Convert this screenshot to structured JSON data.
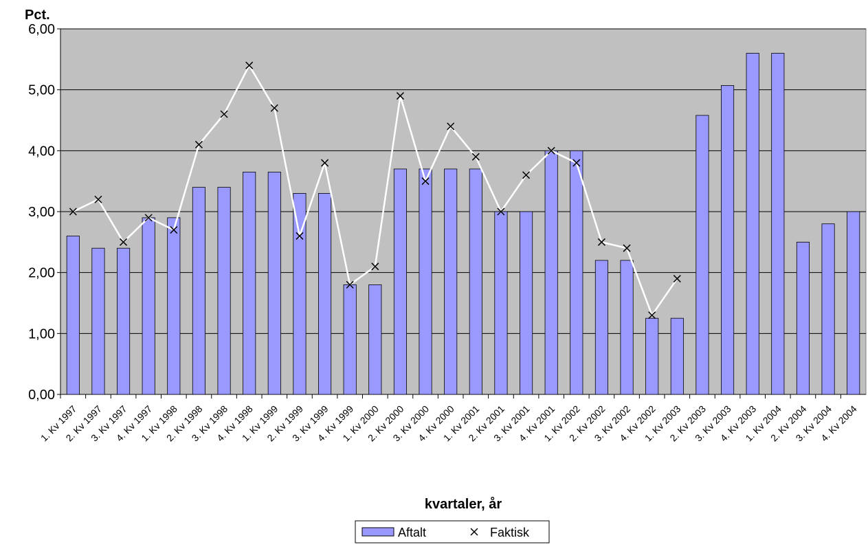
{
  "chart_data": {
    "type": "bar-line",
    "title": "Pct.",
    "x_label": "kvartaler, år",
    "categories": [
      "1. Kv 1997",
      "2. Kv 1997",
      "3. Kv 1997",
      "4. Kv 1997",
      "1. Kv 1998",
      "2. Kv 1998",
      "3. Kv 1998",
      "4. Kv 1998",
      "1. Kv 1999",
      "2. Kv 1999",
      "3. Kv 1999",
      "4. Kv 1999",
      "1. Kv 2000",
      "2. Kv 2000",
      "3. Kv 2000",
      "4. Kv 2000",
      "1. Kv 2001",
      "2. Kv 2001",
      "3. Kv 2001",
      "4. Kv 2001",
      "1. Kv 2002",
      "2. Kv 2002",
      "3. Kv 2002",
      "4. Kv 2002",
      "1. Kv 2003",
      "2. Kv 2003",
      "3. Kv 2003",
      "4. Kv 2003",
      "1. Kv 2004",
      "2. Kv 2004",
      "3. Kv 2004",
      "4. Kv 2004"
    ],
    "series": [
      {
        "name": "Aftalt",
        "type": "bar",
        "color": "#9999ff",
        "values": [
          2.6,
          2.4,
          2.4,
          2.9,
          2.9,
          3.4,
          3.4,
          3.65,
          3.65,
          3.3,
          3.3,
          1.8,
          1.8,
          3.7,
          3.7,
          3.7,
          3.7,
          3.0,
          3.0,
          4.0,
          4.0,
          2.2,
          2.2,
          1.25,
          1.25,
          4.58,
          5.07,
          5.6,
          5.6,
          2.5,
          2.8,
          3.0
        ]
      },
      {
        "name": "Faktisk",
        "type": "line",
        "color": "#ffffff",
        "values": [
          3.0,
          3.2,
          2.5,
          2.9,
          2.7,
          4.1,
          4.6,
          5.4,
          4.7,
          2.6,
          3.8,
          1.8,
          2.1,
          4.9,
          3.5,
          4.4,
          3.9,
          3.0,
          3.6,
          4.0,
          3.8,
          2.5,
          2.4,
          1.3,
          1.9,
          null,
          null,
          null,
          null,
          null,
          null,
          null
        ]
      }
    ],
    "ylim": [
      0,
      6
    ],
    "yticks": [
      {
        "value": 0,
        "label": "0,00"
      },
      {
        "value": 1,
        "label": "1,00"
      },
      {
        "value": 2,
        "label": "2,00"
      },
      {
        "value": 3,
        "label": "3,00"
      },
      {
        "value": 4,
        "label": "4,00"
      },
      {
        "value": 5,
        "label": "5,00"
      },
      {
        "value": 6,
        "label": "6,00"
      }
    ],
    "grid": true,
    "legend": "bottom"
  }
}
